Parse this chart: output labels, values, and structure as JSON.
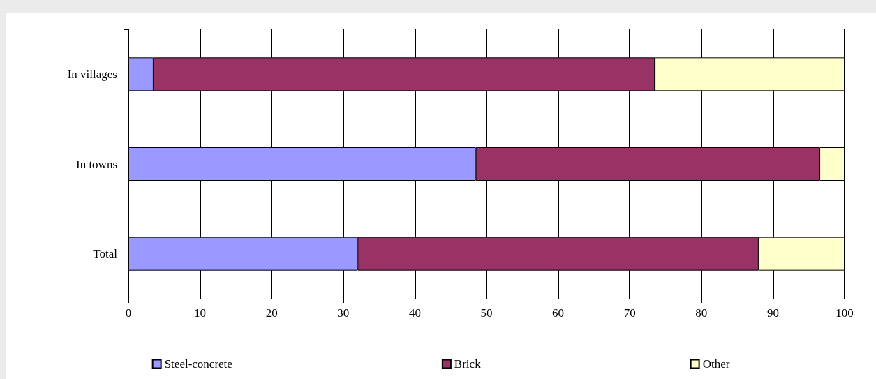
{
  "chart_data": {
    "type": "bar",
    "orientation": "horizontal",
    "stacked": true,
    "categories": [
      "In villages",
      "In towns",
      "Total"
    ],
    "series": [
      {
        "name": "Steel-concrete",
        "color": "#9999ff",
        "values": [
          3.5,
          48.5,
          32
        ]
      },
      {
        "name": "Brick",
        "color": "#993366",
        "values": [
          70,
          48,
          56
        ]
      },
      {
        "name": "Other",
        "color": "#ffffcc",
        "values": [
          26.5,
          3.5,
          12
        ]
      }
    ],
    "xlim": [
      0,
      100
    ],
    "xticks": [
      0,
      10,
      20,
      30,
      40,
      50,
      60,
      70,
      80,
      90,
      100
    ],
    "grid": "x",
    "legend": "bottom"
  }
}
